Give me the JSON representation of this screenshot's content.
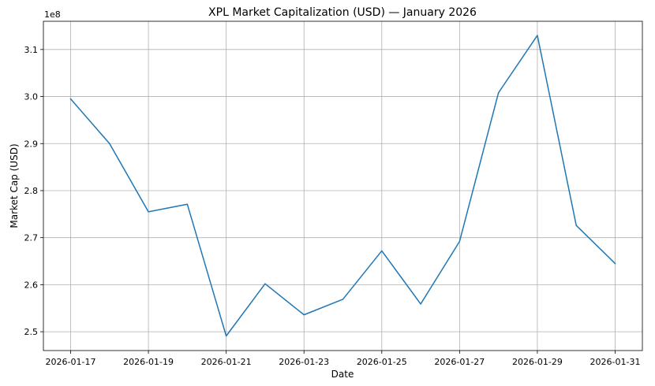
{
  "chart_data": {
    "type": "line",
    "title": "XPL Market Capitalization (USD) — January 2026",
    "xlabel": "Date",
    "ylabel": "Market Cap (USD)",
    "y_offset_label": "1e8",
    "grid": true,
    "x": [
      "2026-01-17",
      "2026-01-18",
      "2026-01-19",
      "2026-01-20",
      "2026-01-21",
      "2026-01-22",
      "2026-01-23",
      "2026-01-24",
      "2026-01-25",
      "2026-01-26",
      "2026-01-27",
      "2026-01-28",
      "2026-01-29",
      "2026-01-30",
      "2026-01-31"
    ],
    "x_ticks": [
      "2026-01-17",
      "2026-01-19",
      "2026-01-21",
      "2026-01-23",
      "2026-01-25",
      "2026-01-27",
      "2026-01-29",
      "2026-01-31"
    ],
    "y_ticks": [
      2.5,
      2.6,
      2.7,
      2.8,
      2.9,
      3.0,
      3.1
    ],
    "ylim": [
      2.46,
      3.16
    ],
    "y_scale": 100000000,
    "series": [
      {
        "color": "#1f77b4",
        "values": [
          2.995,
          2.9,
          2.755,
          2.771,
          2.491,
          2.602,
          2.536,
          2.569,
          2.672,
          2.559,
          2.692,
          3.008,
          3.13,
          2.726,
          2.645
        ]
      }
    ]
  }
}
